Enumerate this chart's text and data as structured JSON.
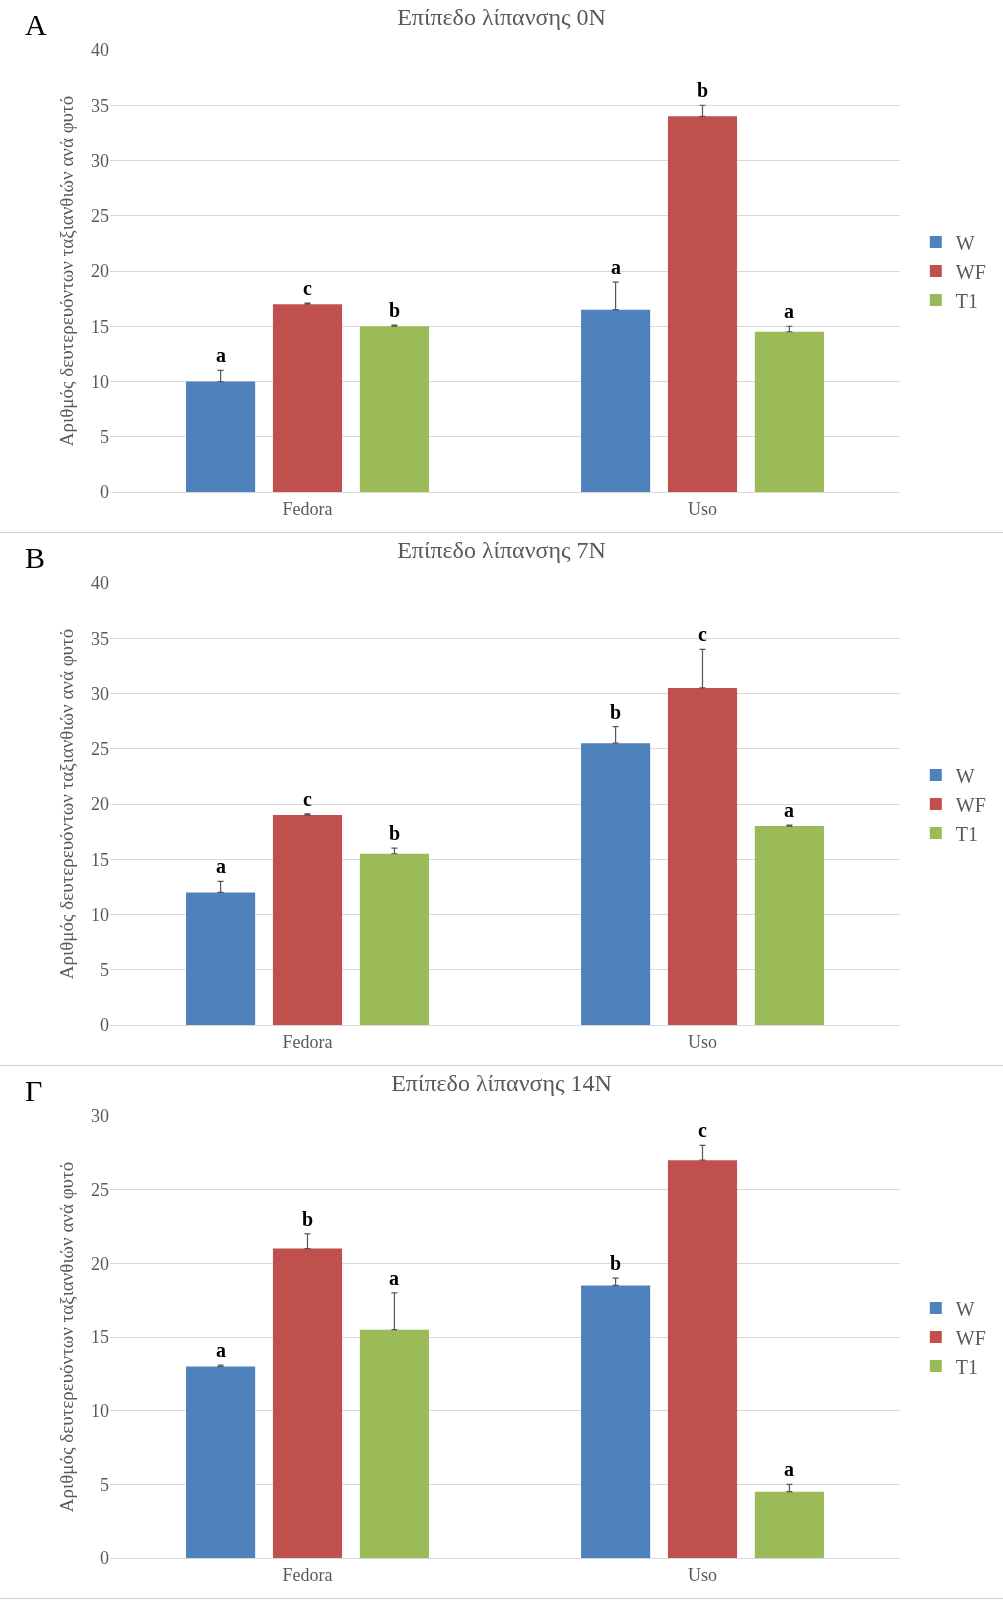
{
  "chart_data": [
    {
      "type": "bar",
      "title": "Επίπεδο λίπανσης 0N",
      "ylabel": "Αριθμός δευτερευόντων ταξιανθιών ανά φυτό",
      "annotations": [
        "A"
      ],
      "categories": [
        "Fedora",
        "Uso"
      ],
      "ylim": [
        0,
        40
      ],
      "yticks": [
        0,
        5,
        10,
        15,
        20,
        25,
        30,
        35,
        40
      ],
      "grid": "y",
      "legend": "right",
      "series": [
        {
          "name": "W",
          "color": "#4f81bd",
          "values": [
            10,
            16.5
          ],
          "errors": [
            [
              10,
              11
            ],
            [
              16.5,
              19
            ]
          ],
          "value_labels": [
            "a",
            "a"
          ]
        },
        {
          "name": "WF",
          "color": "#c0504d",
          "values": [
            17,
            34
          ],
          "errors": [
            [
              17,
              17.1
            ],
            [
              34,
              35
            ]
          ],
          "value_labels": [
            "c",
            "b"
          ]
        },
        {
          "name": "T1",
          "color": "#9bbb59",
          "values": [
            15,
            14.5
          ],
          "errors": [
            [
              15,
              15.1
            ],
            [
              14.5,
              15
            ]
          ],
          "value_labels": [
            "b",
            "a"
          ]
        }
      ]
    },
    {
      "type": "bar",
      "title": "Επίπεδο λίπανσης 7N",
      "ylabel": "Αριθμός δευτερευόντων ταξιανθιών ανά φυτό",
      "annotations": [
        "B"
      ],
      "categories": [
        "Fedora",
        "Uso"
      ],
      "ylim": [
        0,
        40
      ],
      "yticks": [
        0,
        5,
        10,
        15,
        20,
        25,
        30,
        35,
        40
      ],
      "grid": "y",
      "legend": "right",
      "series": [
        {
          "name": "W",
          "color": "#4f81bd",
          "values": [
            12,
            25.5
          ],
          "errors": [
            [
              12,
              13
            ],
            [
              25.5,
              27
            ]
          ],
          "value_labels": [
            "a",
            "b"
          ]
        },
        {
          "name": "WF",
          "color": "#c0504d",
          "values": [
            19,
            30.5
          ],
          "errors": [
            [
              19,
              19.1
            ],
            [
              30.5,
              34
            ]
          ],
          "value_labels": [
            "c",
            "c"
          ]
        },
        {
          "name": "T1",
          "color": "#9bbb59",
          "values": [
            15.5,
            18
          ],
          "errors": [
            [
              15.5,
              16
            ],
            [
              18,
              18.1
            ]
          ],
          "value_labels": [
            "b",
            "a"
          ]
        }
      ]
    },
    {
      "type": "bar",
      "title": "Επίπεδο λίπανσης 14N",
      "ylabel": "Αριθμός δευτερευόντων ταξιανθιών ανά φυτό",
      "annotations": [
        "Γ"
      ],
      "categories": [
        "Fedora",
        "Uso"
      ],
      "ylim": [
        0,
        30
      ],
      "yticks": [
        0,
        5,
        10,
        15,
        20,
        25,
        30
      ],
      "grid": "y",
      "legend": "right",
      "series": [
        {
          "name": "W",
          "color": "#4f81bd",
          "values": [
            13,
            18.5
          ],
          "errors": [
            [
              13,
              13.1
            ],
            [
              18.5,
              19
            ]
          ],
          "value_labels": [
            "a",
            "b"
          ]
        },
        {
          "name": "WF",
          "color": "#c0504d",
          "values": [
            21,
            27
          ],
          "errors": [
            [
              21,
              22
            ],
            [
              27,
              28
            ]
          ],
          "value_labels": [
            "b",
            "c"
          ]
        },
        {
          "name": "T1",
          "color": "#9bbb59",
          "values": [
            15.5,
            4.5
          ],
          "errors": [
            [
              15.5,
              18
            ],
            [
              4.5,
              5
            ]
          ],
          "value_labels": [
            "a",
            "a"
          ]
        }
      ]
    }
  ]
}
